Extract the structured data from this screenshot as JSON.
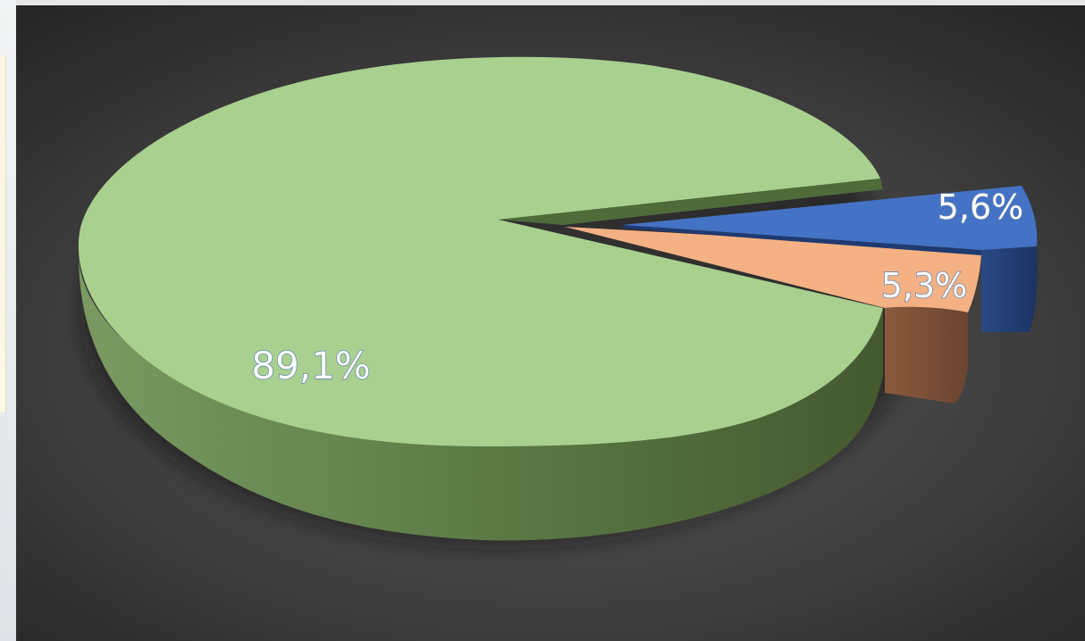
{
  "chart_data": {
    "type": "pie",
    "style": "3d-exploded",
    "title": "",
    "legend": "none",
    "slices": [
      {
        "label": "89,1%",
        "value": 89.1,
        "color": "#a9d08e",
        "side_color": "#6d8c55",
        "exploded": false
      },
      {
        "label": "5,3%",
        "value": 5.3,
        "color": "#f4b183",
        "side_color": "#7a5037",
        "exploded": true
      },
      {
        "label": "5,6%",
        "value": 5.6,
        "color": "#4472c4",
        "side_color": "#1f3a70",
        "exploded": true
      }
    ]
  },
  "background": {
    "panel_color": "#404040",
    "frame_color": "#e4e6e8"
  }
}
